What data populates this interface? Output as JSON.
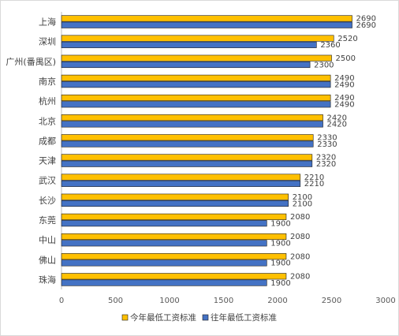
{
  "chart_data": {
    "type": "bar",
    "orientation": "horizontal",
    "categories": [
      "上海",
      "深圳",
      "广州(番禺区)",
      "南京",
      "杭州",
      "北京",
      "成都",
      "天津",
      "武汉",
      "长沙",
      "东莞",
      "中山",
      "佛山",
      "珠海"
    ],
    "series": [
      {
        "name": "今年最低工资标准",
        "color": "#FFC000",
        "values": [
          2690,
          2520,
          2500,
          2490,
          2490,
          2420,
          2330,
          2320,
          2210,
          2100,
          2080,
          2080,
          2080,
          2080
        ]
      },
      {
        "name": "往年最低工资标准",
        "color": "#4472C4",
        "values": [
          2690,
          2360,
          2300,
          2490,
          2490,
          2420,
          2330,
          2320,
          2210,
          2100,
          1900,
          1900,
          1900,
          1900
        ]
      }
    ],
    "xlim": [
      0,
      3000
    ],
    "xticks": [
      0,
      500,
      1000,
      1500,
      2000,
      2500,
      3000
    ],
    "xticks_labels": [
      "0",
      "500",
      "1000",
      "1500",
      "2000",
      "2500",
      "3000"
    ],
    "grid": false,
    "legend": "bottom"
  }
}
